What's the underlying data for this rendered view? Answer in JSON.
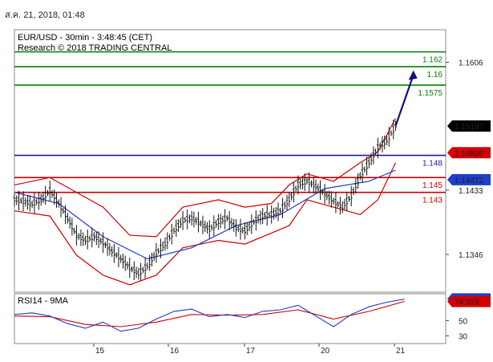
{
  "timestamp": "ส.ค. 21, 2018, 01:48",
  "chart_data": {
    "type": "candlestick",
    "title": "EUR/USD - 30min - 3:48:45 (CET)",
    "subtitle": "Research © 2018 TRADING CENTRAL",
    "xlabels": [
      "15",
      "16",
      "17",
      "20",
      "21"
    ],
    "ylim": [
      1.1295,
      1.165
    ],
    "y_ticks": [
      {
        "value": 1.1606,
        "label": "1.1606"
      },
      {
        "value": 1.1433,
        "label": "1.1433"
      },
      {
        "value": 1.1346,
        "label": "1.1346"
      }
    ],
    "price_tags": [
      {
        "value": 1.15197,
        "label": "1.15197",
        "bg": "#000000",
        "fg": "#ffffff"
      },
      {
        "value": 1.14836,
        "label": "1.14836",
        "bg": "#d60000",
        "fg": "#ffffff"
      },
      {
        "value": 1.14471,
        "label": "1.14471",
        "bg": "#1e40c8",
        "fg": "#ffffff"
      }
    ],
    "levels": [
      {
        "value": 1.162,
        "label": "1.162",
        "color": "#008000"
      },
      {
        "value": 1.16,
        "label": "1.16",
        "color": "#008000"
      },
      {
        "value": 1.1575,
        "label": "1.1575",
        "color": "#008000"
      },
      {
        "value": 1.148,
        "label": "1.148",
        "color": "#1a1aa0"
      },
      {
        "value": 1.145,
        "label": "1.145",
        "color": "#cc0000"
      },
      {
        "value": 1.143,
        "label": "1.143",
        "color": "#cc0000"
      }
    ],
    "price_path": [
      [
        0,
        1.142
      ],
      [
        2,
        1.1418
      ],
      [
        4,
        1.1414
      ],
      [
        6,
        1.142
      ],
      [
        8,
        1.1432
      ],
      [
        10,
        1.1415
      ],
      [
        12,
        1.1395
      ],
      [
        14,
        1.1372
      ],
      [
        16,
        1.1365
      ],
      [
        18,
        1.137
      ],
      [
        20,
        1.1362
      ],
      [
        22,
        1.135
      ],
      [
        24,
        1.134
      ],
      [
        26,
        1.1328
      ],
      [
        28,
        1.132
      ],
      [
        30,
        1.133
      ],
      [
        32,
        1.1348
      ],
      [
        34,
        1.136
      ],
      [
        36,
        1.1378
      ],
      [
        38,
        1.1392
      ],
      [
        40,
        1.1395
      ],
      [
        42,
        1.1388
      ],
      [
        44,
        1.138
      ],
      [
        46,
        1.139
      ],
      [
        48,
        1.1395
      ],
      [
        50,
        1.1382
      ],
      [
        52,
        1.1378
      ],
      [
        54,
        1.139
      ],
      [
        56,
        1.1398
      ],
      [
        58,
        1.14
      ],
      [
        60,
        1.1405
      ],
      [
        62,
        1.142
      ],
      [
        64,
        1.144
      ],
      [
        66,
        1.1445
      ],
      [
        68,
        1.1438
      ],
      [
        70,
        1.1428
      ],
      [
        72,
        1.1418
      ],
      [
        74,
        1.141
      ],
      [
        76,
        1.1425
      ],
      [
        78,
        1.1452
      ],
      [
        80,
        1.147
      ],
      [
        82,
        1.149
      ],
      [
        84,
        1.15
      ],
      [
        86,
        1.152
      ]
    ],
    "ma": [
      [
        0,
        1.143
      ],
      [
        10,
        1.1415
      ],
      [
        20,
        1.137
      ],
      [
        30,
        1.134
      ],
      [
        40,
        1.1355
      ],
      [
        50,
        1.1385
      ],
      [
        60,
        1.14
      ],
      [
        70,
        1.1435
      ],
      [
        80,
        1.1445
      ],
      [
        86,
        1.146
      ]
    ],
    "bb_upper": [
      [
        0,
        1.144
      ],
      [
        8,
        1.145
      ],
      [
        14,
        1.143
      ],
      [
        20,
        1.141
      ],
      [
        26,
        1.1372
      ],
      [
        32,
        1.137
      ],
      [
        38,
        1.141
      ],
      [
        46,
        1.142
      ],
      [
        52,
        1.141
      ],
      [
        58,
        1.1415
      ],
      [
        62,
        1.144
      ],
      [
        66,
        1.1455
      ],
      [
        72,
        1.1445
      ],
      [
        78,
        1.147
      ],
      [
        82,
        1.1485
      ],
      [
        86,
        1.153
      ]
    ],
    "bb_lower": [
      [
        0,
        1.1405
      ],
      [
        8,
        1.1398
      ],
      [
        14,
        1.1345
      ],
      [
        20,
        1.1318
      ],
      [
        26,
        1.1305
      ],
      [
        32,
        1.1318
      ],
      [
        38,
        1.1355
      ],
      [
        46,
        1.1365
      ],
      [
        52,
        1.136
      ],
      [
        58,
        1.1375
      ],
      [
        62,
        1.1385
      ],
      [
        66,
        1.142
      ],
      [
        72,
        1.141
      ],
      [
        78,
        1.14
      ],
      [
        82,
        1.142
      ],
      [
        86,
        1.147
      ]
    ],
    "arrow": {
      "from": [
        86,
        1.152
      ],
      "to": [
        90,
        1.1595
      ]
    },
    "rsi": {
      "label": "RSI14 - 9MA",
      "ylim": [
        20,
        85
      ],
      "y_ticks": [
        {
          "value": 50,
          "label": "50"
        },
        {
          "value": 30,
          "label": "30"
        }
      ],
      "tags": [
        {
          "value": 78.3767,
          "label": "78.3767",
          "bg": "#1e40c8",
          "fg": "#ffffff"
        },
        {
          "value": 74.929,
          "label": "74.929",
          "bg": "#d60000",
          "fg": "#000000"
        }
      ],
      "rsi_line": [
        [
          0,
          58
        ],
        [
          4,
          60
        ],
        [
          8,
          56
        ],
        [
          12,
          46
        ],
        [
          16,
          40
        ],
        [
          20,
          48
        ],
        [
          24,
          36
        ],
        [
          28,
          40
        ],
        [
          32,
          52
        ],
        [
          36,
          62
        ],
        [
          40,
          65
        ],
        [
          44,
          55
        ],
        [
          48,
          58
        ],
        [
          52,
          54
        ],
        [
          56,
          62
        ],
        [
          60,
          64
        ],
        [
          64,
          70
        ],
        [
          68,
          56
        ],
        [
          72,
          42
        ],
        [
          76,
          58
        ],
        [
          80,
          68
        ],
        [
          84,
          74
        ],
        [
          88,
          78
        ]
      ],
      "ma_line": [
        [
          0,
          56
        ],
        [
          8,
          55
        ],
        [
          16,
          45
        ],
        [
          24,
          42
        ],
        [
          32,
          48
        ],
        [
          40,
          58
        ],
        [
          48,
          57
        ],
        [
          56,
          58
        ],
        [
          64,
          64
        ],
        [
          72,
          52
        ],
        [
          80,
          62
        ],
        [
          88,
          75
        ]
      ]
    }
  }
}
